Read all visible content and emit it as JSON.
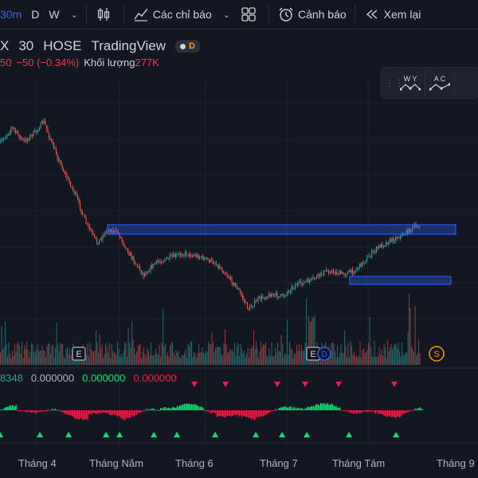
{
  "toolbar": {
    "interval": "30m",
    "intervals": [
      "D",
      "W"
    ],
    "indicators_label": "Các chỉ báo",
    "alert_label": "Cảnh báo",
    "replay_label": "Xem lại"
  },
  "legend": {
    "symbol_prefix": "X",
    "timeframe": "30",
    "exchange": "HOSE",
    "source": "TradingView",
    "badge": "D",
    "price_partial": "50",
    "change": "−50 (−0.34%)",
    "volume_label": "Khối lượng",
    "volume_value": "277K"
  },
  "drawing_tools": [
    {
      "letters": "W Y"
    },
    {
      "letters": "A C"
    }
  ],
  "indicator_values": {
    "v1": "8348",
    "v2": "0.000000",
    "v3": "0.000000",
    "v4": "0.000000"
  },
  "event_markers": {
    "earnings": "E",
    "dividend": "D",
    "split": "S"
  },
  "time_axis": [
    "Tháng 4",
    "Tháng Năm",
    "Tháng 6",
    "Tháng 7",
    "Tháng Tám",
    "Tháng 9"
  ],
  "colors": {
    "up": "#26a69a",
    "down": "#ef5350",
    "zone": "#2962ff",
    "accent": "#2962ff"
  }
}
